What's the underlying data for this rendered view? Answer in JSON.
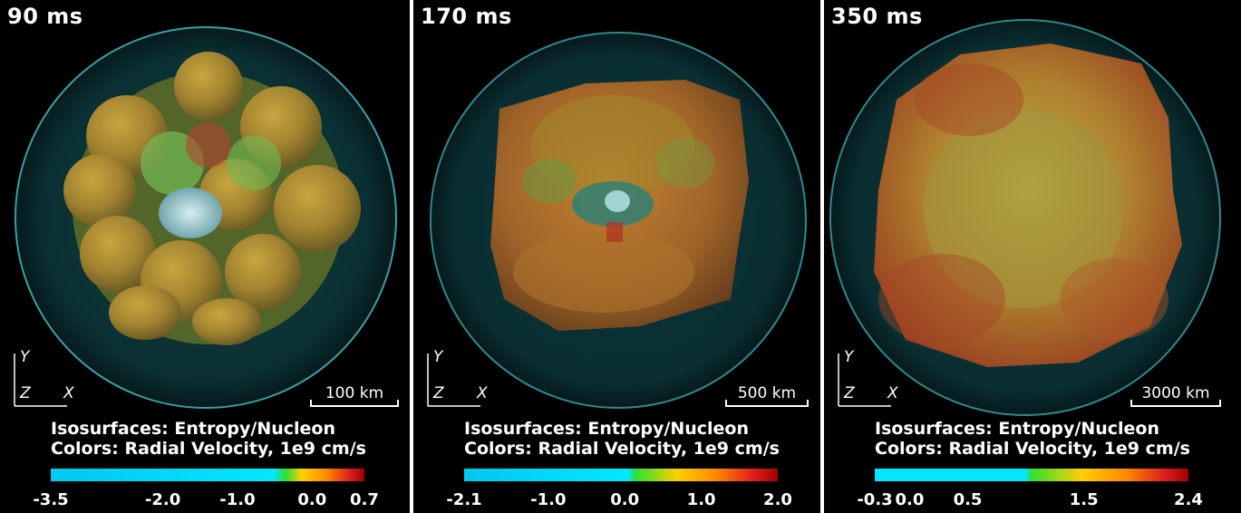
{
  "panels": [
    {
      "time": "90 ms",
      "axes": {
        "y": "Y",
        "z": "Z",
        "x": "X"
      },
      "scale_label": "100 km",
      "legend": {
        "line1": "Isosurfaces: Entropy/Nucleon",
        "line2": "Colors: Radial Velocity, 1e9 cm/s"
      },
      "colorbar": {
        "min": -3.5,
        "max": 0.7,
        "tick_values": [
          -3.5,
          -2.0,
          -1.0,
          0.0,
          0.7
        ],
        "tick_labels": [
          "-3.5",
          "-2.0",
          "-1.0",
          "0.0",
          "0.7"
        ]
      }
    },
    {
      "time": "170 ms",
      "axes": {
        "y": "Y",
        "z": "Z",
        "x": "X"
      },
      "scale_label": "500 km",
      "legend": {
        "line1": "Isosurfaces: Entropy/Nucleon",
        "line2": "Colors: Radial Velocity, 1e9 cm/s"
      },
      "colorbar": {
        "min": -2.1,
        "max": 2.0,
        "tick_values": [
          -2.1,
          -1.0,
          0.0,
          1.0,
          2.0
        ],
        "tick_labels": [
          "-2.1",
          "-1.0",
          "0.0",
          "1.0",
          "2.0"
        ]
      }
    },
    {
      "time": "350 ms",
      "axes": {
        "y": "Y",
        "z": "Z",
        "x": "X"
      },
      "scale_label": "3000 km",
      "legend": {
        "line1": "Isosurfaces: Entropy/Nucleon",
        "line2": "Colors: Radial Velocity, 1e9 cm/s"
      },
      "colorbar": {
        "min": -0.3,
        "max": 2.4,
        "tick_values": [
          -0.3,
          0.0,
          0.5,
          1.5,
          2.4
        ],
        "tick_labels": [
          "-0.3",
          "0.0",
          "0.5",
          "1.5",
          "2.4"
        ]
      }
    }
  ],
  "colors": {
    "background": "#000000",
    "shock_sphere": "#2a8a8a",
    "colormap": [
      "#00c8ff",
      "#00e0ff",
      "#30e030",
      "#ffe000",
      "#ff9000",
      "#e02020",
      "#a00000"
    ]
  }
}
